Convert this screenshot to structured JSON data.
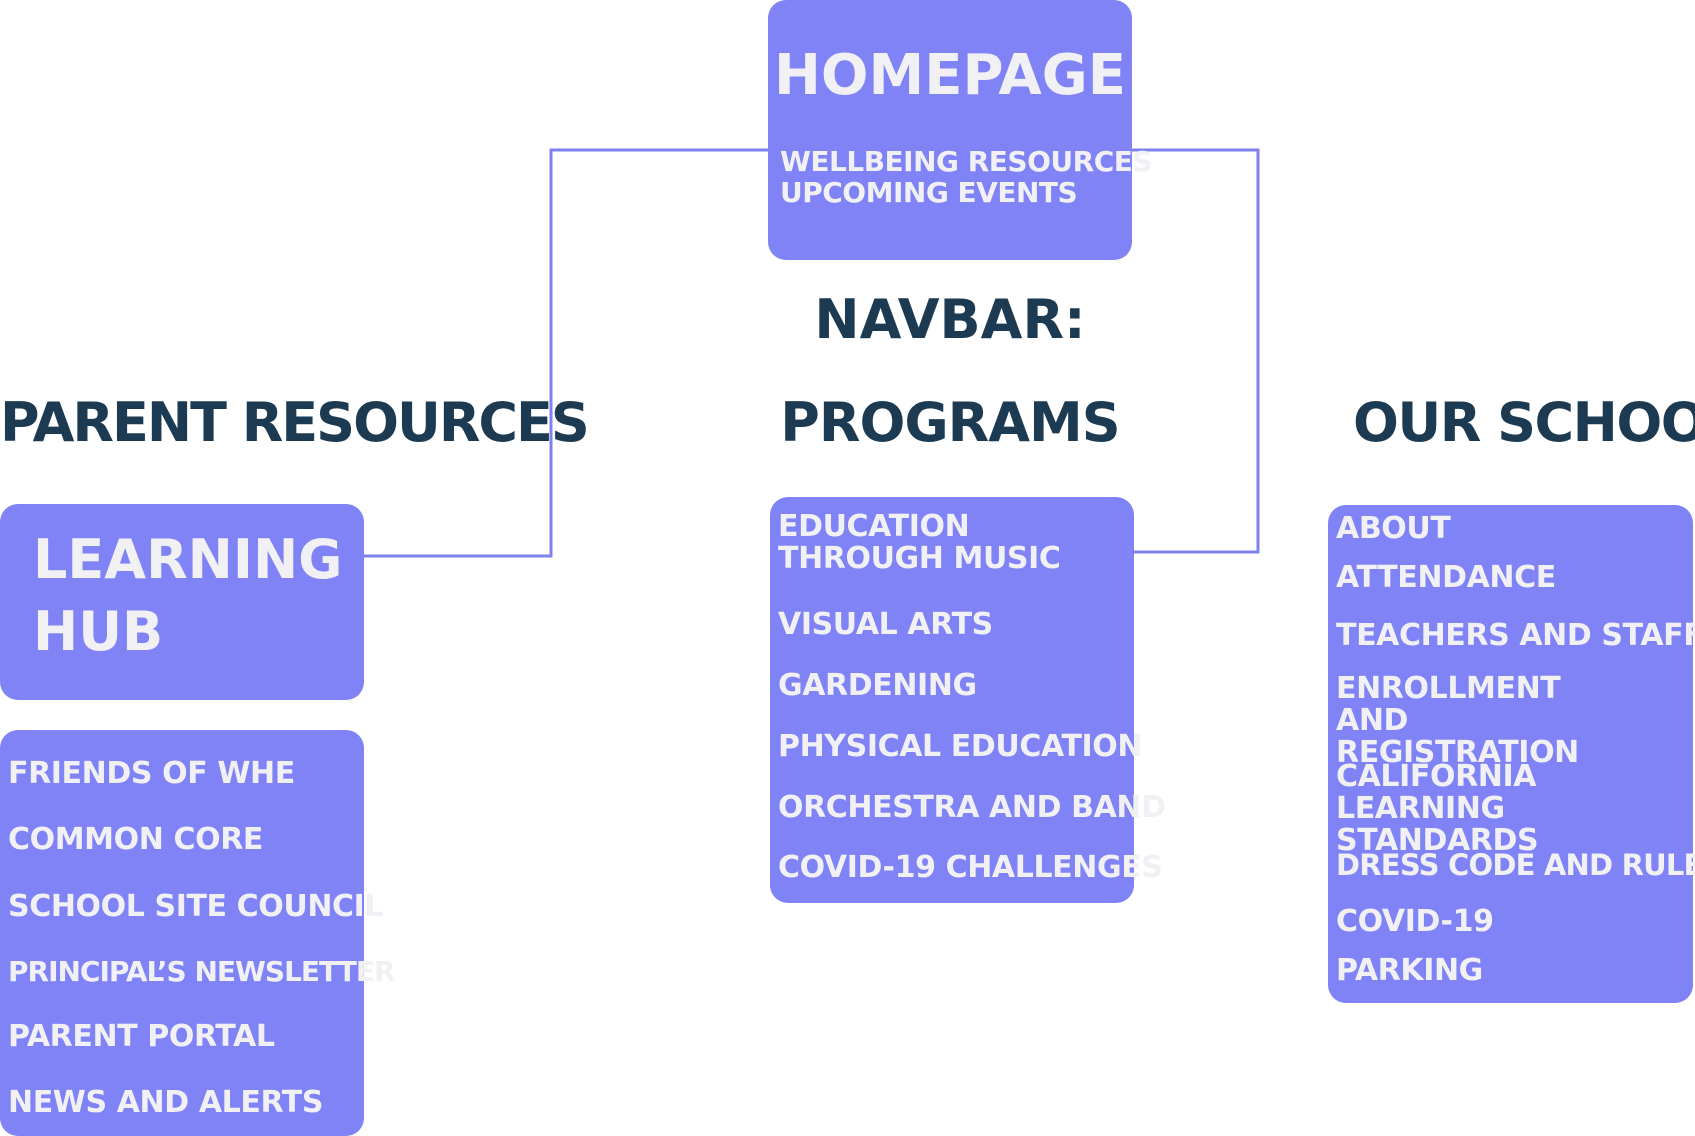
{
  "homepage": {
    "title": "HOMEPAGE",
    "items": [
      "WELLBEING RESOURCES",
      "UPCOMING EVENTS"
    ]
  },
  "navbar": {
    "label": "NAVBAR:"
  },
  "parent_resources": {
    "heading": "PARENT RESOURCES",
    "learning_hub": "LEARNING HUB",
    "items": [
      "FRIENDS OF WHE",
      "COMMON CORE",
      "SCHOOL SITE COUNCIL",
      "PRINCIPAL’S NEWSLETTER",
      "PARENT PORTAL",
      "NEWS AND ALERTS"
    ]
  },
  "programs": {
    "heading": "PROGRAMS",
    "items": [
      "EDUCATION THROUGH MUSIC",
      "VISUAL ARTS",
      "GARDENING",
      "PHYSICAL EDUCATION",
      "ORCHESTRA AND BAND",
      "COVID-19 CHALLENGES"
    ]
  },
  "our_school": {
    "heading": "OUR SCHOOL",
    "items": [
      "ABOUT",
      "ATTENDANCE",
      "TEACHERS AND STAFF",
      "ENROLLMENT AND REGISTRATION",
      "CALIFORNIA LEARNING STANDARDS",
      "DRESS CODE AND RULES",
      "COVID-19",
      "PARKING"
    ]
  },
  "colors": {
    "box_fill": "#8083f6",
    "box_text": "#f1f1f5",
    "heading_text": "#1c3a52",
    "connector": "#7f82ee"
  }
}
